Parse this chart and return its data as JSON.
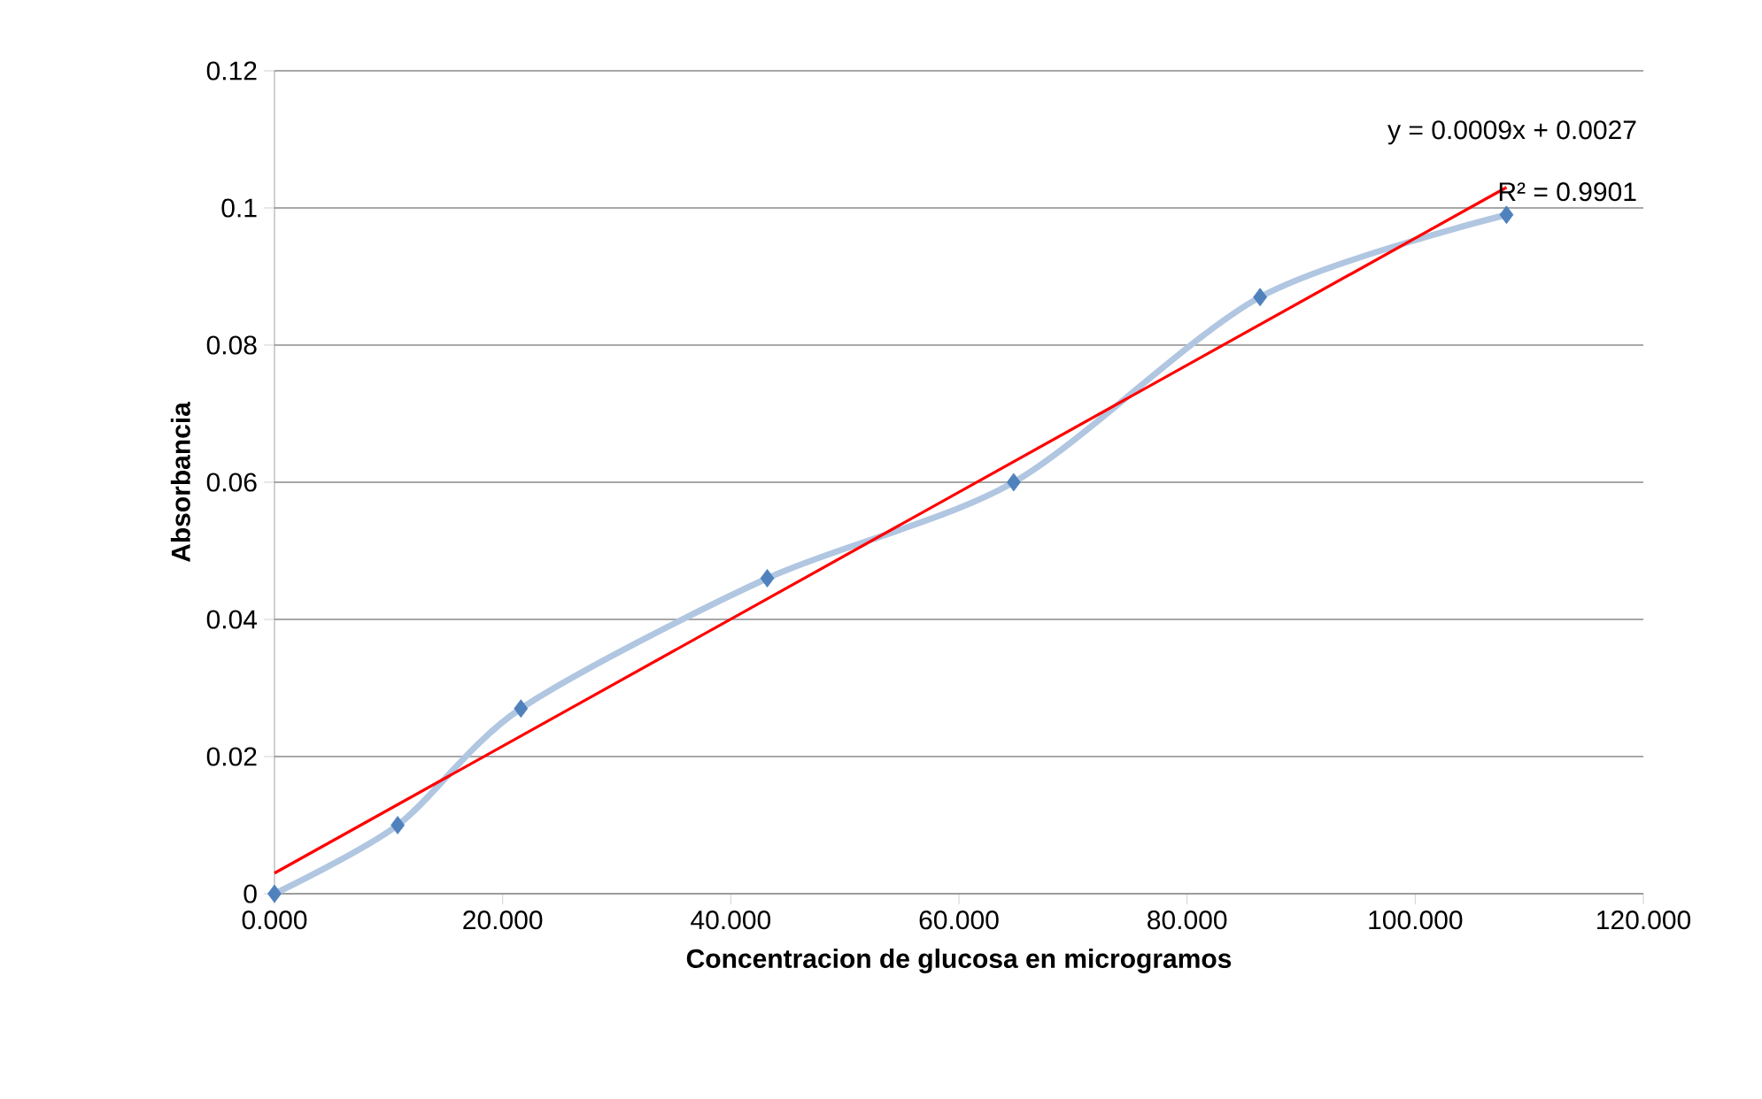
{
  "chart_data": {
    "type": "line",
    "xlabel": "Concentracion de glucosa en microgramos",
    "ylabel": "Absorbancia",
    "series": [
      {
        "color": "#4f81bd",
        "marker": "diamond",
        "x": [
          0,
          10.8,
          21.6,
          43.2,
          64.8,
          86.4,
          108
        ],
        "values": [
          0,
          0.01,
          0.027,
          0.046,
          0.06,
          0.087,
          0.099
        ]
      },
      {
        "color": "#ff0000",
        "marker": "none",
        "x": [
          0,
          108
        ],
        "values": [
          0.003,
          0.103
        ]
      }
    ],
    "annotations": [
      "y = 0.0009x + 0.0027",
      "R² = 0.9901"
    ],
    "xlim": [
      0,
      120
    ],
    "ylim": [
      0,
      0.12
    ],
    "xticks": [
      {
        "value": 0,
        "label": "0.000"
      },
      {
        "value": 20,
        "label": "20.000"
      },
      {
        "value": 40,
        "label": "40.000"
      },
      {
        "value": 60,
        "label": "60.000"
      },
      {
        "value": 80,
        "label": "80.000"
      },
      {
        "value": 100,
        "label": "100.000"
      },
      {
        "value": 120,
        "label": "120.000"
      }
    ],
    "yticks": [
      0,
      0.02,
      0.04,
      0.06,
      0.08,
      0.1,
      0.12
    ],
    "grid": "y"
  }
}
